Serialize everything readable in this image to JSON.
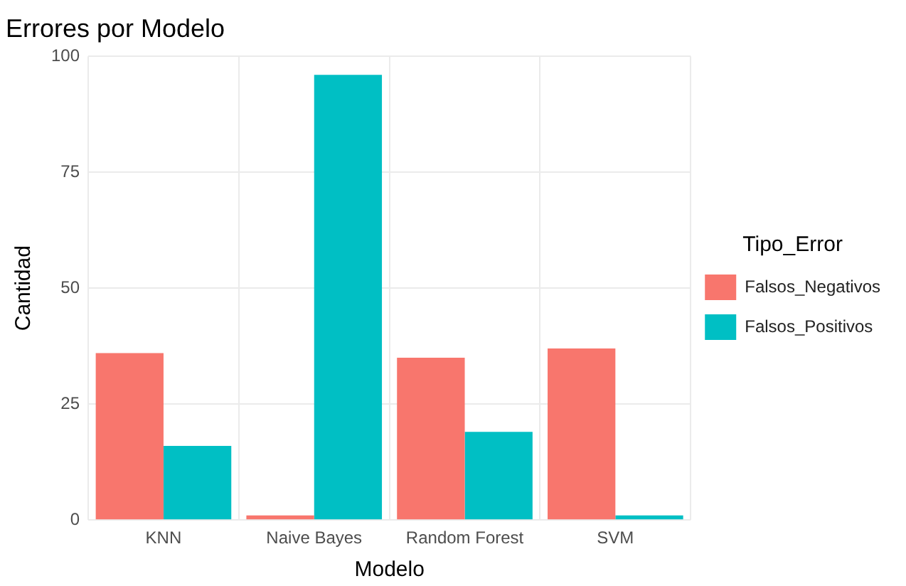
{
  "chart_data": {
    "type": "bar",
    "title": "Errores por Modelo",
    "xlabel": "Modelo",
    "ylabel": "Cantidad",
    "legend_title": "Tipo_Error",
    "categories": [
      "KNN",
      "Naive Bayes",
      "Random Forest",
      "SVM"
    ],
    "series": [
      {
        "name": "Falsos_Negativos",
        "color": "#f8766d",
        "values": [
          36,
          1,
          35,
          37
        ]
      },
      {
        "name": "Falsos_Positivos",
        "color": "#00bfc4",
        "values": [
          16,
          96,
          19,
          1
        ]
      }
    ],
    "ylim": [
      0,
      100
    ],
    "yticks": [
      0,
      25,
      50,
      75,
      100
    ],
    "grid": true,
    "legend": "right"
  }
}
